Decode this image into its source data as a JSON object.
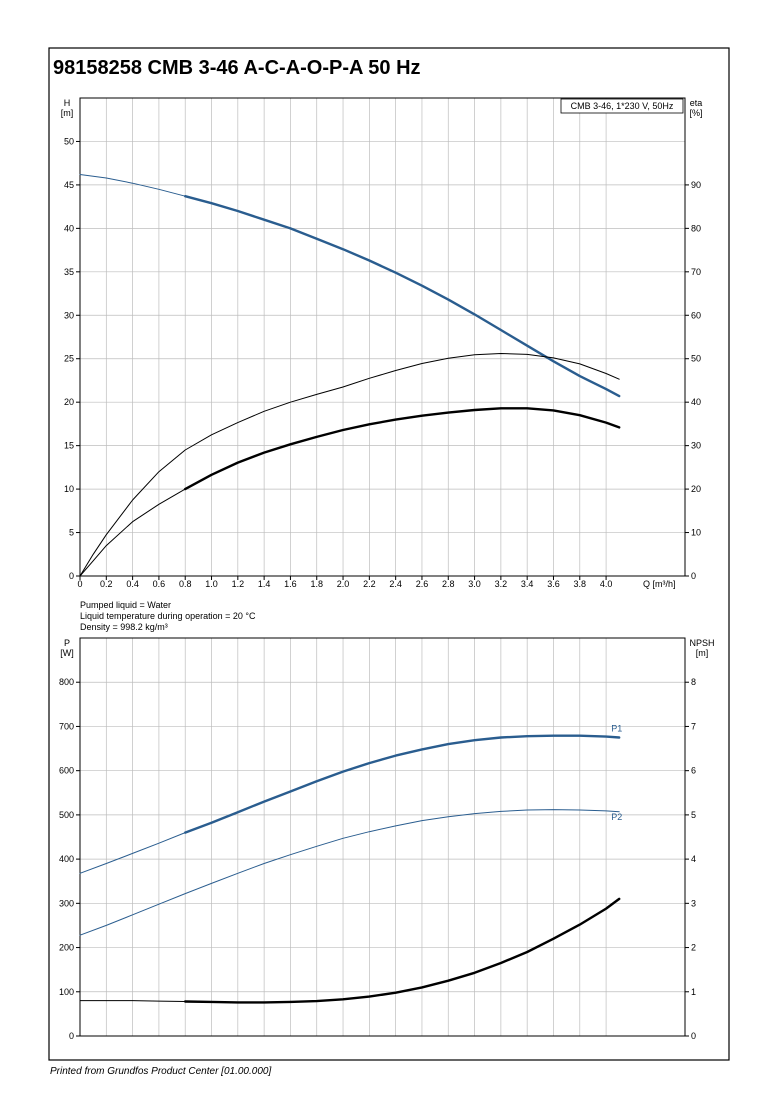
{
  "title": "98158258 CMB 3-46 A-C-A-O-P-A 50 Hz",
  "footer": "Printed from Grundfos Product Center [01.00.000]",
  "colors": {
    "blue": "#2a5d8f",
    "black": "#000000",
    "grid": "#bdbdbd"
  },
  "chart_data": [
    {
      "type": "line",
      "panel": "head",
      "legend_box": "CMB 3-46, 1*230 V, 50Hz",
      "ylabel_left": [
        "H",
        "[m]"
      ],
      "ylabel_right": [
        "eta",
        "[%]"
      ],
      "xlabel": "Q [m³/h]",
      "xlim": [
        0,
        4.6
      ],
      "ylim": [
        0,
        55
      ],
      "y2lim": [
        0,
        110
      ],
      "x_ticks": [
        0,
        0.2,
        0.4,
        0.6,
        0.8,
        1.0,
        1.2,
        1.4,
        1.6,
        1.8,
        2.0,
        2.2,
        2.4,
        2.6,
        2.8,
        3.0,
        3.2,
        3.4,
        3.6,
        3.8,
        4.0
      ],
      "x_tick_labels": [
        "0",
        "0.2",
        "0.4",
        "0.6",
        "0.8",
        "1.0",
        "1.2",
        "1.4",
        "1.6",
        "1.8",
        "2.0",
        "2.2",
        "2.4",
        "2.6",
        "2.8",
        "3.0",
        "3.2",
        "3.4",
        "3.6",
        "3.8",
        "4.0"
      ],
      "y_ticks": [
        0,
        5,
        10,
        15,
        20,
        25,
        30,
        35,
        40,
        45,
        50
      ],
      "y_tick_labels": [
        "0",
        "5",
        "10",
        "15",
        "20",
        "25",
        "30",
        "35",
        "40",
        "45",
        "50"
      ],
      "y2_ticks": [
        0,
        10,
        20,
        30,
        40,
        50,
        60,
        70,
        80,
        90
      ],
      "y2_tick_labels": [
        "0",
        "10",
        "20",
        "30",
        "40",
        "50",
        "60",
        "70",
        "80",
        "90"
      ],
      "grid": true,
      "notes": [
        "Pumped liquid = Water",
        "Liquid temperature during operation = 20 °C",
        "Density = 998.2 kg/m³"
      ],
      "series": [
        {
          "axis": "left",
          "color": "#2a5d8f",
          "width": 1.0,
          "x": [
            0,
            0.2,
            0.4,
            0.6,
            0.8
          ],
          "y": [
            46.2,
            45.8,
            45.2,
            44.5,
            43.7
          ]
        },
        {
          "axis": "left",
          "color": "#2a5d8f",
          "width": 2.4,
          "x": [
            0.8,
            1.0,
            1.2,
            1.4,
            1.6,
            1.8,
            2.0,
            2.2,
            2.4,
            2.6,
            2.8,
            3.0,
            3.2,
            3.4,
            3.6,
            3.8,
            4.0,
            4.1
          ],
          "y": [
            43.7,
            42.9,
            42.0,
            41.0,
            40.0,
            38.8,
            37.6,
            36.3,
            34.9,
            33.4,
            31.8,
            30.1,
            28.3,
            26.5,
            24.7,
            23.0,
            21.5,
            20.7
          ]
        },
        {
          "axis": "right",
          "color": "#000000",
          "width": 1.0,
          "x": [
            0,
            0.1,
            0.2,
            0.4,
            0.6,
            0.8,
            1.0,
            1.2,
            1.4,
            1.6,
            1.8,
            2.0,
            2.2,
            2.4,
            2.6,
            2.8,
            3.0,
            3.2,
            3.4,
            3.6,
            3.8,
            4.0,
            4.1
          ],
          "y": [
            0,
            5,
            9.5,
            17.5,
            24,
            29,
            32.5,
            35.3,
            37.9,
            40,
            41.8,
            43.5,
            45.5,
            47.3,
            48.9,
            50.1,
            50.9,
            51.2,
            51.0,
            50.2,
            48.8,
            46.6,
            45.3
          ]
        },
        {
          "axis": "right",
          "color": "#000000",
          "width": 1.0,
          "x": [
            0,
            0.1,
            0.2,
            0.4,
            0.6,
            0.8
          ],
          "y": [
            0,
            3.5,
            7,
            12.5,
            16.5,
            20
          ]
        },
        {
          "axis": "right",
          "color": "#000000",
          "width": 2.4,
          "x": [
            0.8,
            1.0,
            1.2,
            1.4,
            1.6,
            1.8,
            2.0,
            2.2,
            2.4,
            2.6,
            2.8,
            3.0,
            3.2,
            3.4,
            3.6,
            3.8,
            4.0,
            4.1
          ],
          "y": [
            20,
            23.3,
            26.1,
            28.4,
            30.3,
            32,
            33.6,
            34.9,
            36,
            36.9,
            37.6,
            38.2,
            38.6,
            38.6,
            38.1,
            37.0,
            35.3,
            34.2
          ]
        }
      ]
    },
    {
      "type": "line",
      "panel": "power",
      "ylabel_left": [
        "P",
        "[W]"
      ],
      "ylabel_right": [
        "NPSH",
        "[m]"
      ],
      "xlim": [
        0,
        4.6
      ],
      "ylim": [
        0,
        900
      ],
      "y2lim": [
        0,
        9
      ],
      "y_ticks": [
        0,
        100,
        200,
        300,
        400,
        500,
        600,
        700,
        800
      ],
      "y_tick_labels": [
        "0",
        "100",
        "200",
        "300",
        "400",
        "500",
        "600",
        "700",
        "800"
      ],
      "y2_ticks": [
        0,
        1,
        2,
        3,
        4,
        5,
        6,
        7,
        8
      ],
      "y2_tick_labels": [
        "0",
        "1",
        "2",
        "3",
        "4",
        "5",
        "6",
        "7",
        "8"
      ],
      "grid": true,
      "series": [
        {
          "name": "P1",
          "axis": "left",
          "color": "#2a5d8f",
          "width": 1.0,
          "x": [
            0,
            0.2,
            0.4,
            0.6,
            0.8
          ],
          "y": [
            368,
            390,
            413,
            436,
            460
          ]
        },
        {
          "axis": "left",
          "color": "#2a5d8f",
          "width": 2.4,
          "x": [
            0.8,
            1.0,
            1.2,
            1.4,
            1.6,
            1.8,
            2.0,
            2.2,
            2.4,
            2.6,
            2.8,
            3.0,
            3.2,
            3.4,
            3.6,
            3.8,
            4.0,
            4.1
          ],
          "y": [
            460,
            482,
            506,
            530,
            553,
            576,
            598,
            617,
            634,
            648,
            660,
            669,
            675,
            678,
            679,
            679,
            677,
            675
          ]
        },
        {
          "name": "P2",
          "axis": "left",
          "color": "#2a5d8f",
          "width": 1.0,
          "x": [
            0,
            0.2,
            0.4,
            0.6,
            0.8,
            1.0,
            1.2,
            1.4,
            1.6,
            1.8,
            2.0,
            2.2,
            2.4,
            2.6,
            2.8,
            3.0,
            3.2,
            3.4,
            3.6,
            3.8,
            4.0,
            4.1
          ],
          "y": [
            228,
            250,
            274,
            298,
            322,
            345,
            368,
            390,
            410,
            429,
            447,
            462,
            475,
            487,
            496,
            503,
            508,
            511,
            512,
            511,
            509,
            507
          ]
        },
        {
          "axis": "right",
          "color": "#000000",
          "width": 1.0,
          "x": [
            0,
            0.2,
            0.4,
            0.6,
            0.8
          ],
          "y": [
            0.8,
            0.8,
            0.8,
            0.79,
            0.78
          ]
        },
        {
          "axis": "right",
          "color": "#000000",
          "width": 2.4,
          "x": [
            0.8,
            1.0,
            1.2,
            1.4,
            1.6,
            1.8,
            2.0,
            2.2,
            2.4,
            2.6,
            2.8,
            3.0,
            3.2,
            3.4,
            3.6,
            3.8,
            4.0,
            4.1
          ],
          "y": [
            0.78,
            0.77,
            0.76,
            0.76,
            0.77,
            0.79,
            0.83,
            0.89,
            0.98,
            1.1,
            1.25,
            1.43,
            1.65,
            1.9,
            2.2,
            2.52,
            2.88,
            3.1
          ]
        }
      ]
    }
  ]
}
